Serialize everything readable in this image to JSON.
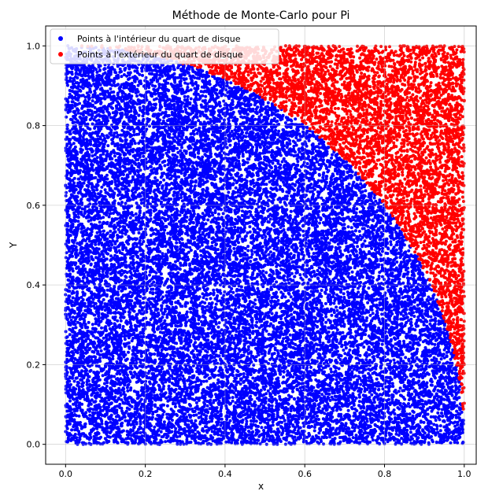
{
  "chart_data": {
    "type": "scatter",
    "title": "Méthode de Monte-Carlo pour Pi",
    "xlabel": "x",
    "ylabel": "Y",
    "xlim": [
      -0.05,
      1.03
    ],
    "ylim": [
      -0.05,
      1.05
    ],
    "xticks": [
      "0.0",
      "0.2",
      "0.4",
      "0.6",
      "0.8",
      "1.0"
    ],
    "yticks": [
      "0.0",
      "0.2",
      "0.4",
      "0.6",
      "0.8",
      "1.0"
    ],
    "xtick_values": [
      0,
      0.2,
      0.4,
      0.6,
      0.8,
      1.0
    ],
    "ytick_values": [
      0,
      0.2,
      0.4,
      0.6,
      0.8,
      1.0
    ],
    "grid": true,
    "legend_position": "top-left",
    "boundary": "x^2 + y^2 = 1",
    "sample_domain": {
      "x": [
        0,
        1
      ],
      "y": [
        0,
        1
      ]
    },
    "series": [
      {
        "name": "Points à l'intérieur du quart de disque",
        "color": "#0000ff",
        "region": "x^2 + y^2 <= 1"
      },
      {
        "name": "Points à l'extérieur du quart de disque",
        "color": "#ff0000",
        "region": "x^2 + y^2 > 1"
      }
    ]
  }
}
